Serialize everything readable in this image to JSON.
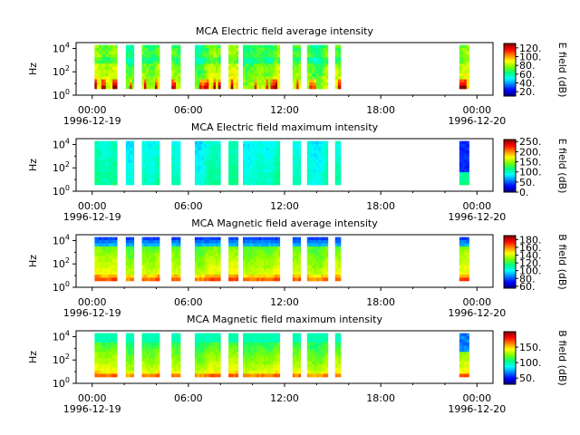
{
  "chart_data": [
    {
      "type": "heatmap",
      "title": "MCA  Electric field average intensity",
      "ylabel": "Hz",
      "colorbar_label": "E field (dB)",
      "colorbar_ticks": [
        "20.",
        "40.",
        "60.",
        "80.",
        "100.",
        "120."
      ],
      "colorbar_range": [
        10,
        130
      ],
      "yticks": [
        "10^0",
        "10^2",
        "10^4"
      ],
      "ylim_log10": [
        0,
        4.5
      ],
      "x_ticks": [
        {
          "time": "00:00",
          "date": "1996-12-19"
        },
        {
          "time": "06:00",
          "date": ""
        },
        {
          "time": "12:00",
          "date": ""
        },
        {
          "time": "18:00",
          "date": ""
        },
        {
          "time": "00:00",
          "date": "1996-12-20"
        }
      ],
      "xlim_hours": [
        -1,
        25
      ],
      "profile": "e_avg"
    },
    {
      "type": "heatmap",
      "title": "MCA  Electric field maximum intensity",
      "ylabel": "Hz",
      "colorbar_label": "E field (dB)",
      "colorbar_ticks": [
        "0.",
        "50.",
        "100.",
        "150.",
        "200.",
        "250."
      ],
      "colorbar_range": [
        0,
        260
      ],
      "yticks": [
        "10^0",
        "10^2",
        "10^4"
      ],
      "ylim_log10": [
        0,
        4.5
      ],
      "x_ticks": [
        {
          "time": "00:00",
          "date": "1996-12-19"
        },
        {
          "time": "06:00",
          "date": ""
        },
        {
          "time": "12:00",
          "date": ""
        },
        {
          "time": "18:00",
          "date": ""
        },
        {
          "time": "00:00",
          "date": "1996-12-20"
        }
      ],
      "xlim_hours": [
        -1,
        25
      ],
      "profile": "e_max"
    },
    {
      "type": "heatmap",
      "title": "MCA  Magnetic field average intensity",
      "ylabel": "Hz",
      "colorbar_label": "B field (dB)",
      "colorbar_ticks": [
        "60.",
        "80.",
        "100.",
        "120.",
        "140.",
        "160.",
        "180."
      ],
      "colorbar_range": [
        55,
        190
      ],
      "yticks": [
        "10^0",
        "10^2",
        "10^4"
      ],
      "ylim_log10": [
        0,
        4.5
      ],
      "x_ticks": [
        {
          "time": "00:00",
          "date": "1996-12-19"
        },
        {
          "time": "06:00",
          "date": ""
        },
        {
          "time": "12:00",
          "date": ""
        },
        {
          "time": "18:00",
          "date": ""
        },
        {
          "time": "00:00",
          "date": "1996-12-20"
        }
      ],
      "xlim_hours": [
        -1,
        25
      ],
      "profile": "b_avg"
    },
    {
      "type": "heatmap",
      "title": "MCA  Magnetic field maximum intensity",
      "ylabel": "Hz",
      "colorbar_label": "B field (dB)",
      "colorbar_ticks": [
        "50.",
        "100.",
        "150."
      ],
      "colorbar_range": [
        30,
        200
      ],
      "yticks": [
        "10^0",
        "10^2",
        "10^4"
      ],
      "ylim_log10": [
        0,
        4.5
      ],
      "x_ticks": [
        {
          "time": "00:00",
          "date": "1996-12-19"
        },
        {
          "time": "06:00",
          "date": ""
        },
        {
          "time": "12:00",
          "date": ""
        },
        {
          "time": "18:00",
          "date": ""
        },
        {
          "time": "00:00",
          "date": "1996-12-20"
        }
      ],
      "xlim_hours": [
        -1,
        25
      ],
      "profile": "b_max"
    }
  ],
  "data_segments_hours": [
    [
      0.15,
      1.55
    ],
    [
      2.1,
      2.6
    ],
    [
      3.1,
      4.2
    ],
    [
      4.95,
      5.5
    ],
    [
      6.4,
      8.0
    ],
    [
      8.5,
      9.1
    ],
    [
      9.4,
      11.7
    ],
    [
      12.5,
      13.0
    ],
    [
      13.4,
      14.7
    ],
    [
      15.15,
      15.5
    ],
    [
      22.9,
      23.5
    ]
  ],
  "freq_range_log10": [
    0.55,
    4.3
  ],
  "colormap": [
    "#00007f",
    "#0000ff",
    "#0080ff",
    "#00ffff",
    "#00ff80",
    "#80ff00",
    "#ffff00",
    "#ff8000",
    "#ff0000",
    "#800000"
  ]
}
